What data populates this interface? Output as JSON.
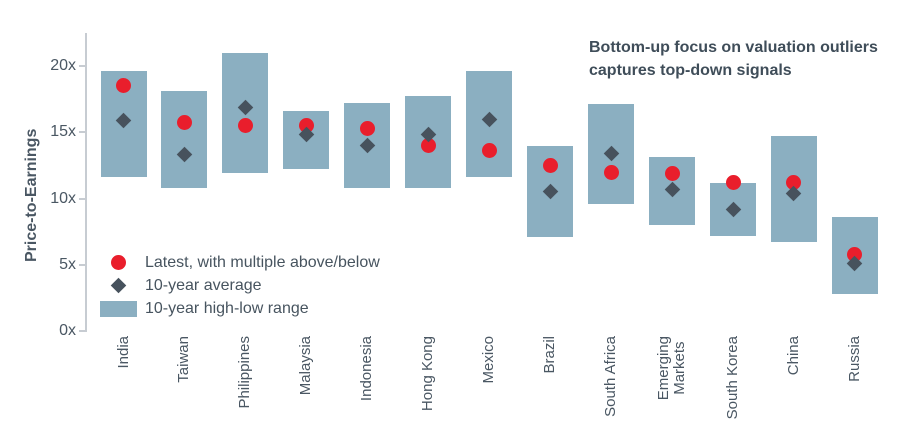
{
  "chart_data": {
    "type": "range-bar-with-markers",
    "title": "",
    "annotation": {
      "line1": "Bottom-up focus on valuation outliers",
      "line2": "captures top-down signals"
    },
    "ylabel": "Price-to-Earnings",
    "ylim": [
      0,
      22.5
    ],
    "yticks": [
      {
        "value": 0,
        "label": "0x"
      },
      {
        "value": 5,
        "label": "5x"
      },
      {
        "value": 10,
        "label": "10x"
      },
      {
        "value": 15,
        "label": "15x"
      },
      {
        "value": 20,
        "label": "20x"
      }
    ],
    "grid": false,
    "legend_position": "lower-left-inside",
    "axis_color": "#c7ccd2",
    "text_color": "#4a5763",
    "categories": [
      "India",
      "Taiwan",
      "Philippines",
      "Malaysia",
      "Indonesia",
      "Hong Kong",
      "Mexico",
      "Brazil",
      "South Africa",
      "Emerging\nMarkets",
      "South Korea",
      "China",
      "Russia"
    ],
    "series": [
      {
        "name": "Latest, with multiple above/below",
        "type": "scatter-circle",
        "color": "#e91e2c",
        "values": [
          18.5,
          15.7,
          15.5,
          15.5,
          15.3,
          14.0,
          13.6,
          12.5,
          12.0,
          11.9,
          11.2,
          11.2,
          5.8
        ]
      },
      {
        "name": "10-year average",
        "type": "scatter-diamond",
        "color": "#47525d",
        "values": [
          15.9,
          13.3,
          16.9,
          14.8,
          14.0,
          14.8,
          16.0,
          10.5,
          13.4,
          10.7,
          9.2,
          10.4,
          5.1
        ]
      },
      {
        "name": "10-year high-low range",
        "type": "range-bar",
        "color": "#8bafc1",
        "low": [
          11.6,
          10.8,
          11.9,
          12.2,
          10.8,
          10.8,
          11.6,
          7.1,
          9.6,
          8.0,
          7.2,
          6.7,
          2.8
        ],
        "high": [
          19.6,
          18.1,
          21.0,
          16.6,
          17.2,
          17.7,
          19.6,
          14.0,
          17.1,
          13.1,
          11.2,
          14.7,
          8.6
        ]
      }
    ]
  }
}
